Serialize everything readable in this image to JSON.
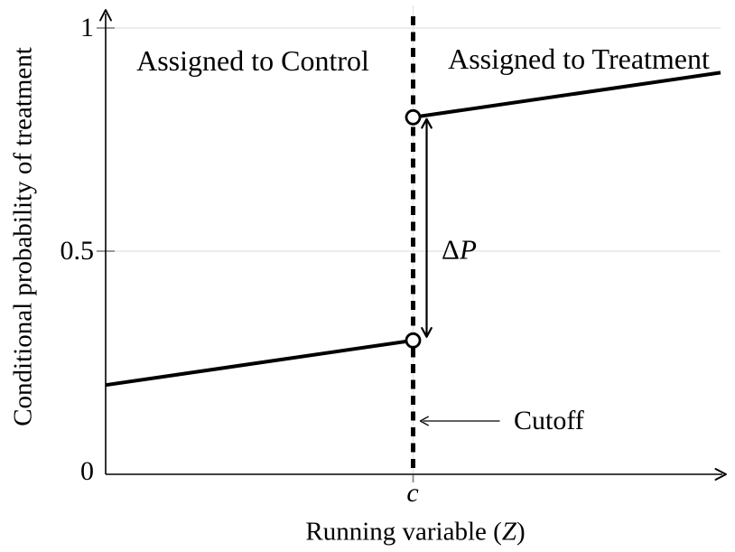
{
  "figure": {
    "colors": {
      "line": "#000000",
      "grid": "#e2e2e2",
      "tick": "#8a8a8a",
      "text": "#000000",
      "background": "#ffffff"
    }
  },
  "chart_data": {
    "type": "line",
    "title": "",
    "ylabel": "Conditional probability of treatment",
    "xlabel_prefix": "Running variable (",
    "xlabel_var": "Z",
    "xlabel_suffix": ")",
    "xlim": [
      0,
      1
    ],
    "ylim": [
      0,
      1
    ],
    "grid": true,
    "legend_position": "none",
    "y_ticks": [
      {
        "value": 0,
        "label": "0"
      },
      {
        "value": 0.5,
        "label": "0.5"
      },
      {
        "value": 1,
        "label": "1"
      }
    ],
    "x_ticks": [
      {
        "value": 0.5,
        "label": "c"
      }
    ],
    "cutoff": {
      "x": 0.5,
      "label": "Cutoff",
      "line_style": "dashed"
    },
    "series": [
      {
        "name": "Assigned to Control",
        "x": [
          0,
          0.5
        ],
        "y": [
          0.2,
          0.3
        ],
        "open_point_at": "end"
      },
      {
        "name": "Assigned to Treatment",
        "x": [
          0.5,
          1
        ],
        "y": [
          0.8,
          0.9
        ],
        "open_point_at": "start"
      }
    ],
    "jump": {
      "x": 0.5,
      "y_from": 0.3,
      "y_to": 0.8,
      "label_delta": "Δ",
      "label_var": "P"
    },
    "region_labels": [
      {
        "text": "Assigned to Control",
        "side": "left"
      },
      {
        "text": "Assigned to Treatment",
        "side": "right"
      }
    ]
  }
}
